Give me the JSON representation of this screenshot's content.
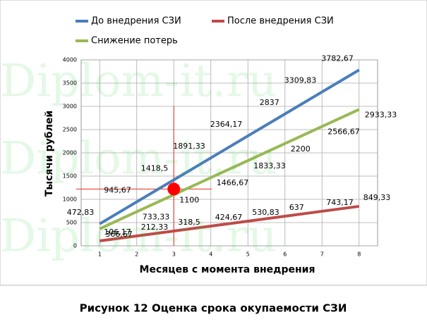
{
  "chart_data": {
    "type": "line",
    "title": "Рисунок 12 Оценка срока окупаемости СЗИ",
    "x_label": "Месяцев с момента внедрения",
    "y_label": "Тысячи рублей",
    "watermark": "Diplom-it.ru",
    "x": [
      1,
      2,
      3,
      4,
      5,
      6,
      7,
      8
    ],
    "xlim": [
      0.5,
      8.5
    ],
    "xticks": [
      1,
      2,
      3,
      4,
      5,
      6,
      7,
      8
    ],
    "ylim": [
      0,
      4000
    ],
    "yticks": [
      0,
      500,
      1000,
      1500,
      2000,
      2500,
      3000,
      3500,
      4000
    ],
    "grid": true,
    "legend": "top",
    "series": [
      {
        "name": "До внедрения СЗИ",
        "color": "#4a7ebb",
        "values": [
          472.83,
          945.67,
          1418.5,
          1891.33,
          2364.17,
          2837,
          3309.83,
          3782.67
        ],
        "value_labels": [
          "472,83",
          "945,67",
          "1418,5",
          "1891,33",
          "2364,17",
          "2837",
          "3309,83",
          "3782,67"
        ]
      },
      {
        "name": "После внедрения СЗИ",
        "color": "#be4b48",
        "values": [
          106.17,
          212.33,
          318.5,
          424.67,
          530.83,
          637,
          743.17,
          849.33
        ],
        "value_labels": [
          "106,17",
          "212,33",
          "318,5",
          "424,67",
          "530,83",
          "637",
          "743,17",
          "849,33"
        ]
      },
      {
        "name": "Снижение потерь",
        "color": "#98b954",
        "values": [
          366.67,
          733.33,
          1100,
          1466.67,
          1833.33,
          2200,
          2566.67,
          2933.33
        ],
        "value_labels": [
          "366,67",
          "733,33",
          "1100",
          "1466,67",
          "1833,33",
          "2200",
          "2566,67",
          "2933,33"
        ]
      }
    ]
  }
}
